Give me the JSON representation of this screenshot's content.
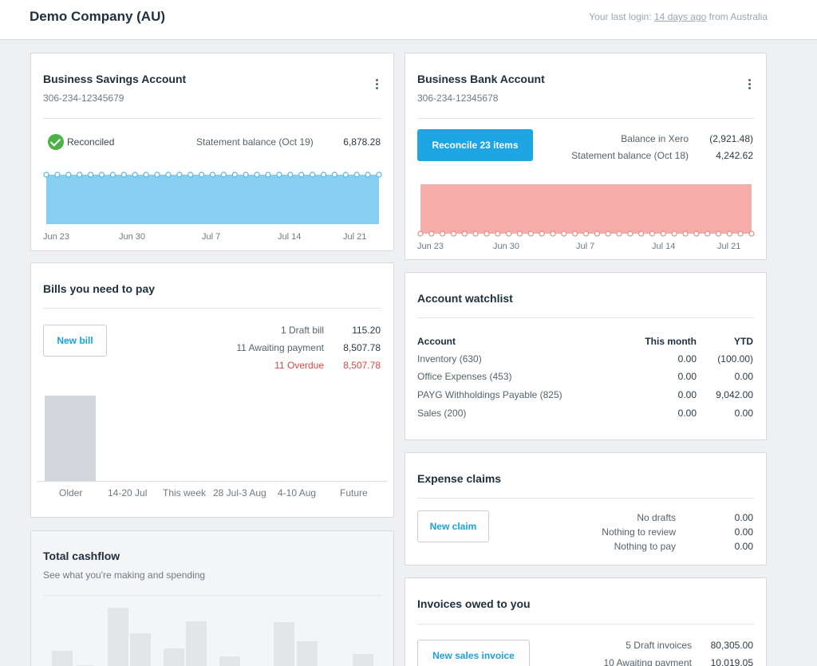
{
  "header": {
    "company": "Demo Company (AU)",
    "last_login_prefix": "Your last login:",
    "last_login_link": "14 days ago",
    "last_login_suffix": "from Australia"
  },
  "savings": {
    "title": "Business Savings Account",
    "number": "306-234-12345679",
    "status": "Reconciled",
    "statement_label": "Statement balance (Oct 19)",
    "statement_value": "6,878.28",
    "x_labels": [
      "Jun 23",
      "Jun 30",
      "Jul 7",
      "Jul 14",
      "Jul 21"
    ],
    "color": "#86cff1"
  },
  "bank": {
    "title": "Business Bank Account",
    "number": "306-234-12345678",
    "reconcile_label": "Reconcile 23 items",
    "balance_xero_label": "Balance in Xero",
    "balance_xero_value": "(2,921.48)",
    "statement_label": "Statement balance (Oct 18)",
    "statement_value": "4,242.62",
    "x_labels": [
      "Jun 23",
      "Jun 30",
      "Jul 7",
      "Jul 14",
      "Jul 21"
    ],
    "color": "#f6adaa"
  },
  "bills": {
    "title": "Bills you need to pay",
    "new_bill": "New bill",
    "rows": [
      {
        "label": "1 Draft bill",
        "value": "115.20"
      },
      {
        "label": "11 Awaiting payment",
        "value": "8,507.78"
      },
      {
        "label": "11 Overdue",
        "value": "8,507.78"
      }
    ],
    "x_labels": [
      "Older",
      "14-20 Jul",
      "This week",
      "28 Jul-3 Aug",
      "4-10 Aug",
      "Future"
    ]
  },
  "cashflow": {
    "title": "Total cashflow",
    "subtitle": "See what you're making and spending"
  },
  "watchlist": {
    "title": "Account watchlist",
    "col_account": "Account",
    "col_month": "This month",
    "col_ytd": "YTD",
    "rows": [
      {
        "account": "Inventory (630)",
        "month": "0.00",
        "ytd": "(100.00)"
      },
      {
        "account": "Office Expenses (453)",
        "month": "0.00",
        "ytd": "0.00"
      },
      {
        "account": "PAYG Withholdings Payable (825)",
        "month": "0.00",
        "ytd": "9,042.00"
      },
      {
        "account": "Sales (200)",
        "month": "0.00",
        "ytd": "0.00"
      }
    ]
  },
  "expenses": {
    "title": "Expense claims",
    "new_claim": "New claim",
    "rows": [
      {
        "label": "No drafts",
        "value": "0.00"
      },
      {
        "label": "Nothing to review",
        "value": "0.00"
      },
      {
        "label": "Nothing to pay",
        "value": "0.00"
      }
    ]
  },
  "invoices": {
    "title": "Invoices owed to you",
    "new_invoice": "New sales invoice",
    "rows": [
      {
        "label": "5 Draft invoices",
        "value": "80,305.00"
      },
      {
        "label": "10 Awaiting payment",
        "value": "10,019.05"
      }
    ]
  }
}
